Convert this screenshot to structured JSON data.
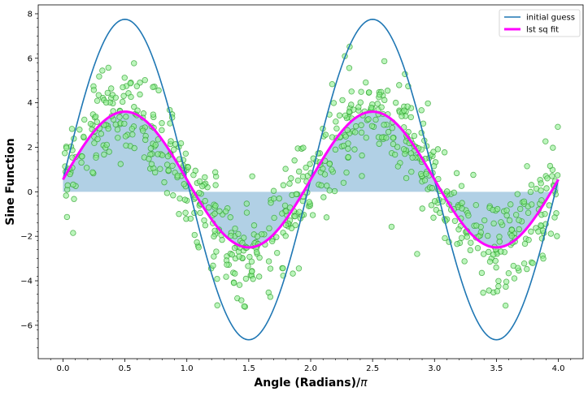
{
  "chart_data": {
    "type": "scatter",
    "title": "",
    "xlabel": "Angle (Radians)/",
    "xlabel_symbol": "π",
    "ylabel": "Sine Function",
    "xlim": [
      -0.2,
      4.2
    ],
    "ylim": [
      -7.5,
      8.4
    ],
    "x_ticks": [
      0.0,
      0.5,
      1.0,
      1.5,
      2.0,
      2.5,
      3.0,
      3.5,
      4.0
    ],
    "x_tick_labels": [
      "0.0",
      "0.5",
      "1.0",
      "1.5",
      "2.0",
      "2.5",
      "3.0",
      "3.5",
      "4.0"
    ],
    "y_ticks": [
      -6,
      -4,
      -2,
      0,
      2,
      4,
      6,
      8
    ],
    "y_tick_labels": [
      "−6",
      "−4",
      "−2",
      "0",
      "2",
      "4",
      "6",
      "8"
    ],
    "minor_ticks": true,
    "grid": false,
    "legend_position": "top-right",
    "scatter": {
      "color_fill": "#90ee90",
      "color_edge": "#2ca02c",
      "count": 750,
      "model": "y = 3.05*sin(pi*x) + 0.55 + noise",
      "noise_sd": 1.15
    },
    "series": [
      {
        "name": "initial guess",
        "kind": "line",
        "color": "#1f77b4",
        "amplitude": 7.2,
        "frequency_pi": 1.0,
        "phase": 0.0,
        "offset": 0.55
      },
      {
        "name": "lst sq fit",
        "kind": "line",
        "color": "#ff00ff",
        "amplitude": 3.05,
        "frequency_pi": 1.0,
        "phase": 0.0,
        "offset": 0.55
      }
    ],
    "fill_between": {
      "series": "lst sq fit",
      "baseline": 0,
      "color": "#1f77b4",
      "opacity": 0.35
    }
  }
}
